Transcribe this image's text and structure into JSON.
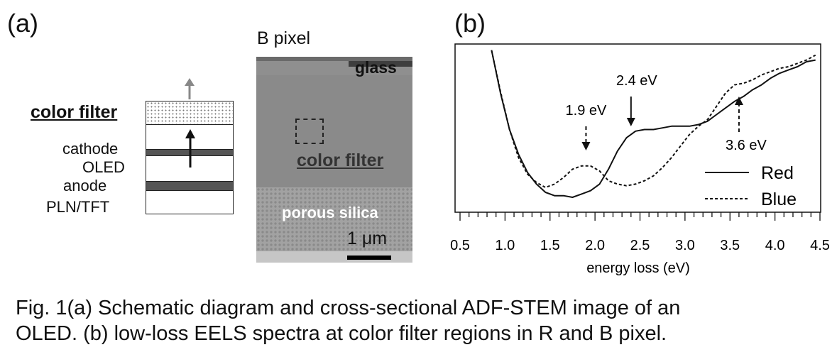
{
  "panel_a": {
    "label": "(a)",
    "schematic": {
      "layers": [
        "color filter",
        "cathode",
        "OLED",
        "anode",
        "PLN/TFT"
      ]
    },
    "stem_image": {
      "title": "B pixel",
      "labels": {
        "glass": "glass",
        "color_filter": "color filter",
        "porous_silica": "porous silica",
        "scale_bar": "1 μm"
      }
    }
  },
  "panel_b": {
    "label": "(b)"
  },
  "chart_data": {
    "type": "line",
    "xlabel": "energy loss (eV)",
    "ylabel": "",
    "xlim": [
      0.5,
      4.5
    ],
    "x_ticks": [
      "0.5",
      "1.0",
      "1.5",
      "2.0",
      "2.5",
      "3.0",
      "3.5",
      "4.0",
      "4.5"
    ],
    "legend": "bottom-right",
    "grid": false,
    "series": [
      {
        "name": "Red",
        "style": "solid",
        "color": "#111111",
        "points": [
          [
            0.85,
            0.98
          ],
          [
            0.95,
            0.72
          ],
          [
            1.05,
            0.5
          ],
          [
            1.15,
            0.35
          ],
          [
            1.25,
            0.24
          ],
          [
            1.35,
            0.17
          ],
          [
            1.45,
            0.12
          ],
          [
            1.55,
            0.1
          ],
          [
            1.65,
            0.1
          ],
          [
            1.75,
            0.09
          ],
          [
            1.85,
            0.11
          ],
          [
            1.95,
            0.13
          ],
          [
            2.05,
            0.17
          ],
          [
            2.15,
            0.26
          ],
          [
            2.25,
            0.37
          ],
          [
            2.35,
            0.45
          ],
          [
            2.45,
            0.49
          ],
          [
            2.55,
            0.5
          ],
          [
            2.65,
            0.5
          ],
          [
            2.75,
            0.51
          ],
          [
            2.85,
            0.52
          ],
          [
            2.95,
            0.52
          ],
          [
            3.05,
            0.52
          ],
          [
            3.15,
            0.53
          ],
          [
            3.25,
            0.55
          ],
          [
            3.35,
            0.59
          ],
          [
            3.45,
            0.63
          ],
          [
            3.55,
            0.67
          ],
          [
            3.65,
            0.7
          ],
          [
            3.75,
            0.74
          ],
          [
            3.85,
            0.77
          ],
          [
            3.95,
            0.81
          ],
          [
            4.05,
            0.84
          ],
          [
            4.15,
            0.86
          ],
          [
            4.25,
            0.88
          ],
          [
            4.35,
            0.91
          ],
          [
            4.45,
            0.92
          ]
        ]
      },
      {
        "name": "Blue",
        "style": "dotted",
        "color": "#111111",
        "points": [
          [
            0.85,
            0.98
          ],
          [
            0.95,
            0.73
          ],
          [
            1.05,
            0.5
          ],
          [
            1.15,
            0.33
          ],
          [
            1.25,
            0.23
          ],
          [
            1.35,
            0.18
          ],
          [
            1.45,
            0.15
          ],
          [
            1.55,
            0.17
          ],
          [
            1.65,
            0.21
          ],
          [
            1.75,
            0.26
          ],
          [
            1.85,
            0.28
          ],
          [
            1.95,
            0.28
          ],
          [
            2.05,
            0.25
          ],
          [
            2.15,
            0.19
          ],
          [
            2.25,
            0.17
          ],
          [
            2.35,
            0.16
          ],
          [
            2.45,
            0.17
          ],
          [
            2.55,
            0.19
          ],
          [
            2.65,
            0.22
          ],
          [
            2.75,
            0.27
          ],
          [
            2.85,
            0.33
          ],
          [
            2.95,
            0.4
          ],
          [
            3.05,
            0.47
          ],
          [
            3.15,
            0.52
          ],
          [
            3.25,
            0.56
          ],
          [
            3.35,
            0.64
          ],
          [
            3.45,
            0.72
          ],
          [
            3.55,
            0.77
          ],
          [
            3.65,
            0.78
          ],
          [
            3.75,
            0.8
          ],
          [
            3.85,
            0.83
          ],
          [
            3.95,
            0.85
          ],
          [
            4.05,
            0.87
          ],
          [
            4.15,
            0.88
          ],
          [
            4.25,
            0.9
          ],
          [
            4.35,
            0.92
          ],
          [
            4.45,
            0.95
          ]
        ]
      }
    ],
    "annotations": [
      {
        "text": "1.9 eV",
        "x": 1.9,
        "arrow": "dashed"
      },
      {
        "text": "2.4 eV",
        "x": 2.4,
        "arrow": "solid"
      },
      {
        "text": "3.6 eV",
        "x": 3.6,
        "arrow": "dashed"
      }
    ]
  },
  "caption": {
    "line1": "Fig. 1(a) Schematic diagram and cross-sectional ADF-STEM image of an",
    "line2": "OLED. (b) low-loss EELS spectra at color filter regions in R and B pixel."
  },
  "colors": {
    "stem_gray": "#8e8e8e",
    "silica_gray": "#a4a4a4",
    "dark_layer": "#555555"
  }
}
